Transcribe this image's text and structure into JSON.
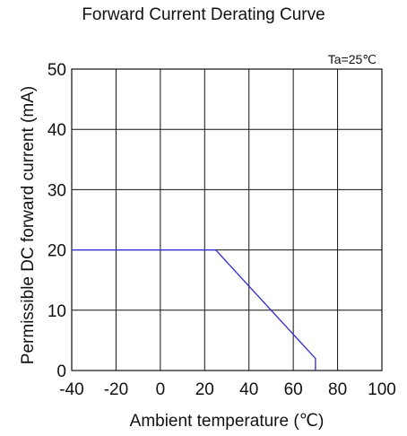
{
  "chart_data": {
    "type": "line",
    "title": "Forward Current Derating Curve",
    "xlabel": "Ambient temperature (℃)",
    "ylabel": "Permissible DC forward current (mA)",
    "annotation": "Ta=25℃",
    "xlim": [
      -40,
      100
    ],
    "ylim": [
      0,
      50
    ],
    "xticks": [
      "-40",
      "-20",
      "0",
      "20",
      "40",
      "60",
      "80",
      "100"
    ],
    "yticks": [
      "0",
      "10",
      "20",
      "30",
      "40",
      "50"
    ],
    "grid": true,
    "line_color": "#2a2ad0",
    "series": [
      {
        "x": [
          -40,
          25,
          70,
          70
        ],
        "y": [
          20,
          20,
          2,
          0
        ]
      }
    ]
  }
}
